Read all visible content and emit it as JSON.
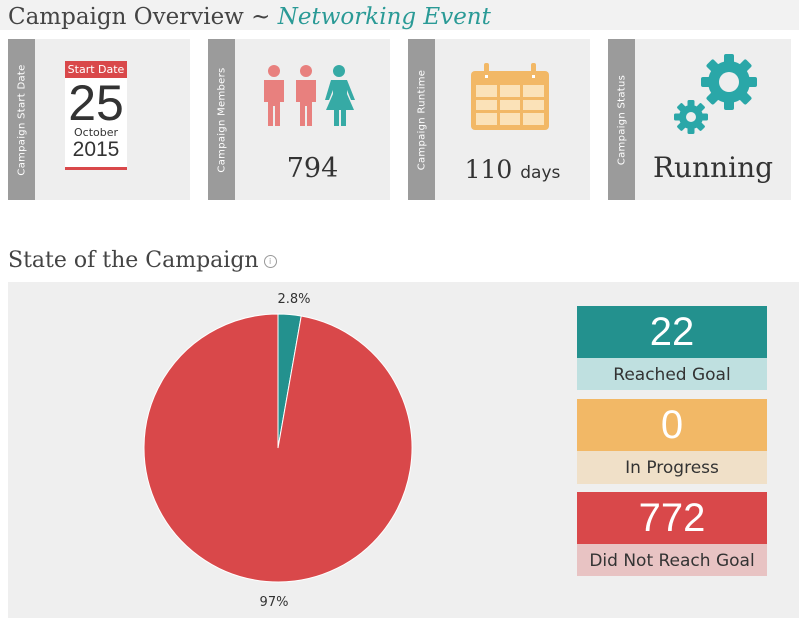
{
  "header": {
    "title_prefix": "Campaign Overview ~ ",
    "event_name": "Networking Event"
  },
  "cards": {
    "start_date": {
      "tab_label": "Campaign Start Date",
      "badge": "Start Date",
      "day": "25",
      "month": "October",
      "year": "2015"
    },
    "members": {
      "tab_label": "Campaign Members",
      "value": "794",
      "icon": "people-icon"
    },
    "runtime": {
      "tab_label": "Campaign Runtime",
      "value": "110",
      "unit": "days",
      "icon": "calendar-icon"
    },
    "status": {
      "tab_label": "Campaign Status",
      "value": "Running",
      "icon": "gears-icon"
    }
  },
  "state": {
    "title": "State of the Campaign",
    "info_glyph": "i",
    "pie_labels": {
      "reached_pct": "2.8%",
      "not_reached_pct": "97%"
    },
    "stats": [
      {
        "value": "22",
        "label": "Reached Goal",
        "color": "#23918e",
        "label_bg": "#bfe0e0"
      },
      {
        "value": "0",
        "label": "In Progress",
        "color": "#f2b866",
        "label_bg": "#f0e0c8"
      },
      {
        "value": "772",
        "label": "Did Not Reach Goal",
        "color": "#d9484a",
        "label_bg": "#e8c3c3"
      }
    ]
  },
  "chart_data": {
    "type": "pie",
    "categories": [
      "Reached Goal",
      "In Progress",
      "Did Not Reach Goal"
    ],
    "values": [
      22,
      0,
      772
    ],
    "labels": [
      "2.8%",
      "97%"
    ],
    "colors": [
      "#23918e",
      "#f2b866",
      "#d9484a"
    ]
  }
}
